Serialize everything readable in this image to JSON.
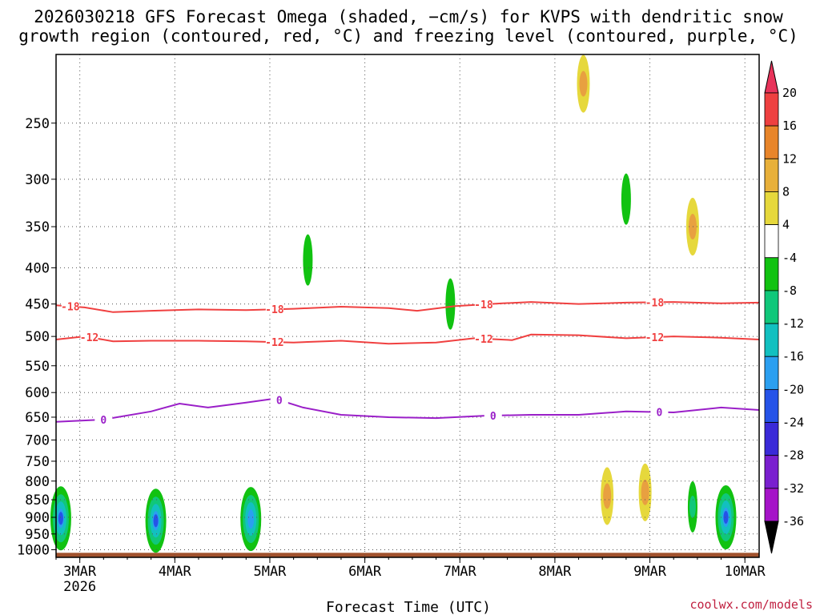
{
  "title_line1": "2026030218 GFS Forecast Omega (shaded, −cm/s) for KVPS with dendritic snow",
  "title_line2": "growth region (contoured, red, °C) and freezing level (contoured, purple, °C)",
  "credit": "coolwx.com/models",
  "chart_data": {
    "type": "heatmap",
    "title": "2026030218 GFS Forecast Omega (shaded, −cm/s) for KVPS with dendritic snow growth region (contoured, red, °C) and freezing level (contoured, purple, °C)",
    "xlabel": "Forecast Time (UTC)",
    "ylabel": "",
    "x_ticks": [
      {
        "label": "3MAR",
        "t": 0.25,
        "sub": "2026"
      },
      {
        "label": "4MAR",
        "t": 1.25
      },
      {
        "label": "5MAR",
        "t": 2.25
      },
      {
        "label": "6MAR",
        "t": 3.25
      },
      {
        "label": "7MAR",
        "t": 4.25
      },
      {
        "label": "8MAR",
        "t": 5.25
      },
      {
        "label": "9MAR",
        "t": 6.25
      },
      {
        "label": "10MAR",
        "t": 7.25
      }
    ],
    "x_range_days": [
      0,
      7.4
    ],
    "y_ticks": [
      250,
      300,
      350,
      400,
      450,
      500,
      550,
      600,
      650,
      700,
      750,
      800,
      850,
      900,
      950,
      1000
    ],
    "y_range_hpa": [
      1025,
      200
    ],
    "y_scale": "log-pressure",
    "grid": "dotted",
    "colorbar": {
      "labels": [
        "20",
        "16",
        "12",
        "8",
        "4",
        "-4",
        "-8",
        "-12",
        "-16",
        "-20",
        "-24",
        "-28",
        "-32",
        "-36"
      ],
      "colors": [
        "#e8335a",
        "#ee4040",
        "#e8852a",
        "#e8b03a",
        "#e6d83c",
        "#ffffff",
        "#11c211",
        "#10c77a",
        "#12c0c0",
        "#2b9ff0",
        "#2553e8",
        "#3a2ad8",
        "#7a1fcf",
        "#a514c8",
        "#a8a8a8"
      ]
    },
    "contours": [
      {
        "label": "-18",
        "color": "#f04040",
        "points": [
          [
            0,
            452
          ],
          [
            0.3,
            455
          ],
          [
            0.6,
            462
          ],
          [
            1.0,
            460
          ],
          [
            1.5,
            458
          ],
          [
            2.0,
            459
          ],
          [
            2.5,
            457
          ],
          [
            3.0,
            454
          ],
          [
            3.5,
            456
          ],
          [
            3.8,
            460
          ],
          [
            4.2,
            453
          ],
          [
            4.7,
            449
          ],
          [
            5.0,
            447
          ],
          [
            5.5,
            450
          ],
          [
            6.0,
            448
          ],
          [
            6.5,
            447
          ],
          [
            7.0,
            449
          ],
          [
            7.4,
            448
          ]
        ],
        "label_t": [
          0.15,
          2.3,
          4.5,
          6.3
        ]
      },
      {
        "label": "-12",
        "color": "#f04040",
        "points": [
          [
            0,
            505
          ],
          [
            0.3,
            500
          ],
          [
            0.6,
            508
          ],
          [
            1.0,
            507
          ],
          [
            1.5,
            507
          ],
          [
            2.0,
            508
          ],
          [
            2.5,
            510
          ],
          [
            3.0,
            507
          ],
          [
            3.5,
            512
          ],
          [
            4.0,
            510
          ],
          [
            4.4,
            503
          ],
          [
            4.8,
            506
          ],
          [
            5.0,
            497
          ],
          [
            5.5,
            498
          ],
          [
            6.0,
            503
          ],
          [
            6.5,
            500
          ],
          [
            7.0,
            502
          ],
          [
            7.4,
            505
          ]
        ],
        "label_t": [
          0.35,
          2.3,
          4.5,
          6.3
        ]
      },
      {
        "label": "0",
        "color": "#9a1fc8",
        "points": [
          [
            0,
            660
          ],
          [
            0.5,
            655
          ],
          [
            1.0,
            638
          ],
          [
            1.3,
            622
          ],
          [
            1.6,
            630
          ],
          [
            2.0,
            620
          ],
          [
            2.3,
            612
          ],
          [
            2.6,
            630
          ],
          [
            3.0,
            645
          ],
          [
            3.5,
            650
          ],
          [
            4.0,
            652
          ],
          [
            4.5,
            647
          ],
          [
            5.0,
            645
          ],
          [
            5.5,
            645
          ],
          [
            6.0,
            638
          ],
          [
            6.5,
            640
          ],
          [
            7.0,
            630
          ],
          [
            7.4,
            635
          ]
        ],
        "label_t": [
          0.5,
          2.35,
          4.6,
          6.35
        ]
      }
    ],
    "omega_features": [
      {
        "t": 0.05,
        "p": 903,
        "band": "-20"
      },
      {
        "t": 1.05,
        "p": 910,
        "band": "-20"
      },
      {
        "t": 2.05,
        "p": 905,
        "band": "-16"
      },
      {
        "t": 7.05,
        "p": 900,
        "band": "-20"
      },
      {
        "t": 2.65,
        "p": 390,
        "band": "-8"
      },
      {
        "t": 4.15,
        "p": 450,
        "band": "-8"
      },
      {
        "t": 6.0,
        "p": 320,
        "band": "-8"
      },
      {
        "t": 6.7,
        "p": 870,
        "band": "-12"
      },
      {
        "t": 5.55,
        "p": 220,
        "band": "12"
      },
      {
        "t": 5.8,
        "p": 840,
        "band": "12"
      },
      {
        "t": 6.2,
        "p": 830,
        "band": "12"
      },
      {
        "t": 6.7,
        "p": 350,
        "band": "12"
      }
    ]
  }
}
